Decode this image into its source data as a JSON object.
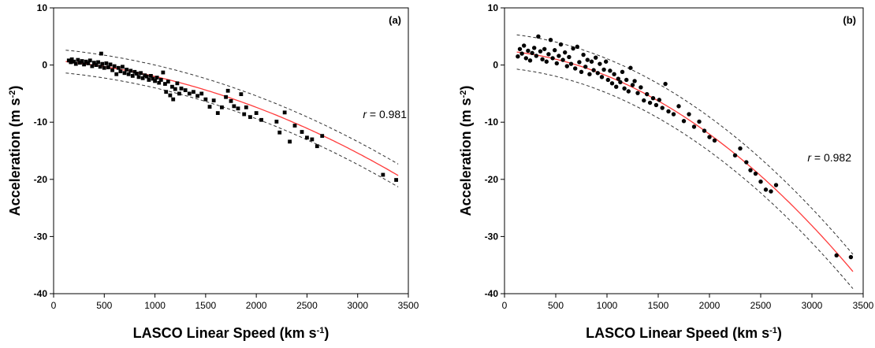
{
  "chart_data": [
    {
      "type": "scatter",
      "panel_label": "(a)",
      "xlabel": "LASCO Linear Speed (km s",
      "xlabel_sup": "-1",
      "xlabel_end": ")",
      "ylabel": "Acceleration (m s",
      "ylabel_sup": "-2",
      "ylabel_end": ")",
      "xlim": [
        0,
        3500
      ],
      "ylim": [
        -40,
        10
      ],
      "xticks": [
        0,
        500,
        1000,
        1500,
        2000,
        2500,
        3000,
        3500
      ],
      "yticks": [
        10,
        0,
        -10,
        -20,
        -30,
        -40
      ],
      "annotation_var": "r",
      "annotation_val": " = 0.981",
      "marker": "square",
      "fit_coeffs": [
        0.8,
        -0.0015,
        -1.3e-06
      ],
      "band_halfwidth": 2.0,
      "fit_color": "#ff3b3b",
      "points": [
        [
          150,
          0.8
        ],
        [
          170,
          0.5
        ],
        [
          180,
          1.0
        ],
        [
          200,
          0.6
        ],
        [
          220,
          0.2
        ],
        [
          240,
          0.9
        ],
        [
          260,
          0.4
        ],
        [
          280,
          0.7
        ],
        [
          300,
          0.1
        ],
        [
          320,
          0.6
        ],
        [
          340,
          0.3
        ],
        [
          360,
          0.8
        ],
        [
          380,
          -0.2
        ],
        [
          400,
          0.4
        ],
        [
          420,
          0.0
        ],
        [
          440,
          0.5
        ],
        [
          460,
          -0.3
        ],
        [
          470,
          2.0
        ],
        [
          480,
          0.2
        ],
        [
          500,
          -0.5
        ],
        [
          520,
          0.3
        ],
        [
          540,
          -0.4
        ],
        [
          560,
          0.1
        ],
        [
          580,
          -0.9
        ],
        [
          600,
          -0.2
        ],
        [
          620,
          -1.6
        ],
        [
          640,
          -0.5
        ],
        [
          660,
          -1.1
        ],
        [
          680,
          -0.3
        ],
        [
          700,
          -1.4
        ],
        [
          720,
          -0.8
        ],
        [
          740,
          -1.6
        ],
        [
          760,
          -1.0
        ],
        [
          780,
          -1.9
        ],
        [
          800,
          -1.2
        ],
        [
          820,
          -1.5
        ],
        [
          840,
          -2.1
        ],
        [
          860,
          -1.4
        ],
        [
          880,
          -2.3
        ],
        [
          900,
          -1.8
        ],
        [
          920,
          -2.0
        ],
        [
          940,
          -2.6
        ],
        [
          960,
          -1.9
        ],
        [
          980,
          -2.4
        ],
        [
          1000,
          -2.8
        ],
        [
          1020,
          -2.2
        ],
        [
          1040,
          -3.1
        ],
        [
          1060,
          -2.6
        ],
        [
          1080,
          -1.3
        ],
        [
          1100,
          -3.3
        ],
        [
          1110,
          -4.7
        ],
        [
          1130,
          -2.9
        ],
        [
          1150,
          -5.3
        ],
        [
          1170,
          -3.8
        ],
        [
          1180,
          -6.0
        ],
        [
          1200,
          -4.2
        ],
        [
          1220,
          -3.2
        ],
        [
          1240,
          -5.0
        ],
        [
          1260,
          -4.1
        ],
        [
          1300,
          -4.4
        ],
        [
          1340,
          -5.0
        ],
        [
          1380,
          -4.7
        ],
        [
          1420,
          -5.4
        ],
        [
          1460,
          -5.0
        ],
        [
          1500,
          -6.0
        ],
        [
          1540,
          -7.3
        ],
        [
          1580,
          -6.2
        ],
        [
          1620,
          -8.4
        ],
        [
          1660,
          -7.4
        ],
        [
          1700,
          -5.6
        ],
        [
          1720,
          -4.5
        ],
        [
          1750,
          -6.3
        ],
        [
          1780,
          -7.2
        ],
        [
          1820,
          -7.6
        ],
        [
          1850,
          -5.1
        ],
        [
          1880,
          -8.6
        ],
        [
          1900,
          -7.4
        ],
        [
          1940,
          -9.1
        ],
        [
          2000,
          -8.4
        ],
        [
          2050,
          -9.6
        ],
        [
          2200,
          -9.9
        ],
        [
          2230,
          -11.8
        ],
        [
          2280,
          -8.3
        ],
        [
          2330,
          -13.4
        ],
        [
          2380,
          -10.6
        ],
        [
          2450,
          -11.7
        ],
        [
          2500,
          -12.7
        ],
        [
          2550,
          -13.0
        ],
        [
          2600,
          -14.2
        ],
        [
          2650,
          -12.4
        ],
        [
          3250,
          -19.2
        ],
        [
          3380,
          -20.1
        ]
      ]
    },
    {
      "type": "scatter",
      "panel_label": "(b)",
      "xlabel": "LASCO Linear Speed (km s",
      "xlabel_sup": "-1",
      "xlabel_end": ")",
      "ylabel": "Acceleration (m s",
      "ylabel_sup": "-2",
      "ylabel_end": ")",
      "xlim": [
        0,
        3500
      ],
      "ylim": [
        -40,
        10
      ],
      "xticks": [
        0,
        500,
        1000,
        1500,
        2000,
        2500,
        3000,
        3500
      ],
      "yticks": [
        10,
        0,
        -10,
        -20,
        -30,
        -40
      ],
      "annotation_var": "r",
      "annotation_val": " = 0.982",
      "marker": "circle",
      "fit_coeffs": [
        2.5,
        -0.0015,
        -2.9e-06
      ],
      "band_halfwidth": 3.0,
      "fit_color": "#ff3b3b",
      "points": [
        [
          130,
          1.5
        ],
        [
          150,
          2.8
        ],
        [
          170,
          2.0
        ],
        [
          190,
          3.4
        ],
        [
          210,
          1.2
        ],
        [
          230,
          2.5
        ],
        [
          250,
          0.8
        ],
        [
          270,
          2.1
        ],
        [
          290,
          3.0
        ],
        [
          310,
          1.6
        ],
        [
          330,
          5.0
        ],
        [
          350,
          2.4
        ],
        [
          370,
          1.0
        ],
        [
          390,
          2.8
        ],
        [
          410,
          0.6
        ],
        [
          430,
          1.9
        ],
        [
          450,
          4.4
        ],
        [
          470,
          1.2
        ],
        [
          490,
          2.6
        ],
        [
          510,
          0.3
        ],
        [
          530,
          1.6
        ],
        [
          550,
          3.6
        ],
        [
          570,
          0.9
        ],
        [
          590,
          2.2
        ],
        [
          610,
          -0.2
        ],
        [
          630,
          1.4
        ],
        [
          650,
          0.2
        ],
        [
          670,
          2.9
        ],
        [
          690,
          -0.6
        ],
        [
          710,
          3.2
        ],
        [
          730,
          0.5
        ],
        [
          750,
          -1.2
        ],
        [
          770,
          1.8
        ],
        [
          790,
          -0.3
        ],
        [
          810,
          0.9
        ],
        [
          830,
          -1.6
        ],
        [
          850,
          0.6
        ],
        [
          870,
          -0.9
        ],
        [
          890,
          1.3
        ],
        [
          910,
          -1.4
        ],
        [
          930,
          0.2
        ],
        [
          950,
          -2.1
        ],
        [
          970,
          -0.8
        ],
        [
          990,
          0.6
        ],
        [
          1010,
          -2.6
        ],
        [
          1030,
          -1.0
        ],
        [
          1050,
          -3.2
        ],
        [
          1070,
          -1.6
        ],
        [
          1090,
          -3.8
        ],
        [
          1110,
          -2.4
        ],
        [
          1130,
          -3.0
        ],
        [
          1150,
          -1.2
        ],
        [
          1170,
          -4.1
        ],
        [
          1190,
          -2.6
        ],
        [
          1210,
          -4.6
        ],
        [
          1230,
          -0.5
        ],
        [
          1250,
          -3.5
        ],
        [
          1270,
          -2.8
        ],
        [
          1300,
          -4.9
        ],
        [
          1330,
          -3.9
        ],
        [
          1360,
          -6.2
        ],
        [
          1390,
          -5.1
        ],
        [
          1420,
          -6.6
        ],
        [
          1450,
          -5.8
        ],
        [
          1480,
          -7.0
        ],
        [
          1510,
          -6.1
        ],
        [
          1540,
          -7.5
        ],
        [
          1570,
          -3.3
        ],
        [
          1600,
          -8.1
        ],
        [
          1650,
          -8.6
        ],
        [
          1700,
          -7.2
        ],
        [
          1750,
          -9.8
        ],
        [
          1800,
          -8.6
        ],
        [
          1850,
          -10.8
        ],
        [
          1900,
          -9.9
        ],
        [
          1950,
          -11.5
        ],
        [
          2000,
          -12.6
        ],
        [
          2050,
          -13.2
        ],
        [
          2250,
          -15.8
        ],
        [
          2300,
          -14.6
        ],
        [
          2360,
          -17.0
        ],
        [
          2400,
          -18.4
        ],
        [
          2450,
          -19.0
        ],
        [
          2500,
          -20.4
        ],
        [
          2550,
          -21.8
        ],
        [
          2600,
          -22.1
        ],
        [
          2650,
          -21.0
        ],
        [
          3240,
          -33.3
        ],
        [
          3380,
          -33.6
        ]
      ]
    }
  ]
}
